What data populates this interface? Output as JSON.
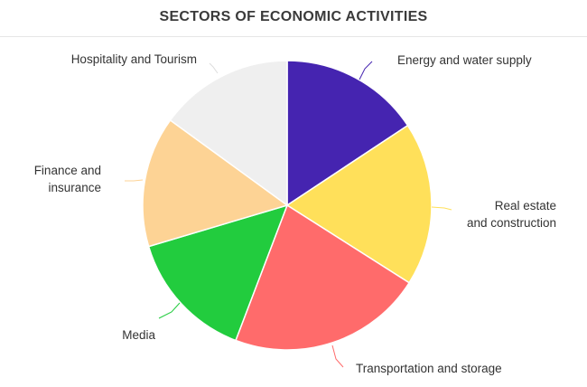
{
  "chart_data": {
    "type": "pie",
    "title": "SECTORS OF ECONOMIC ACTIVITIES",
    "start_angle_deg": 0,
    "direction": "clockwise",
    "slices": [
      {
        "label": [
          "Energy and water supply"
        ],
        "value": 15.7,
        "color": "#4524b0"
      },
      {
        "label": [
          "Real estate",
          "and construction"
        ],
        "value": 18.3,
        "color": "#ffe05a"
      },
      {
        "label": [
          "Transportation and storage"
        ],
        "value": 21.8,
        "color": "#ff6b6b"
      },
      {
        "label": [
          "Media"
        ],
        "value": 14.6,
        "color": "#22cc3e"
      },
      {
        "label": [
          "Finance and",
          "insurance"
        ],
        "value": 14.6,
        "color": "#fdd395"
      },
      {
        "label": [
          "Hospitality and Tourism"
        ],
        "value": 15.0,
        "color": "#efefef"
      }
    ]
  }
}
